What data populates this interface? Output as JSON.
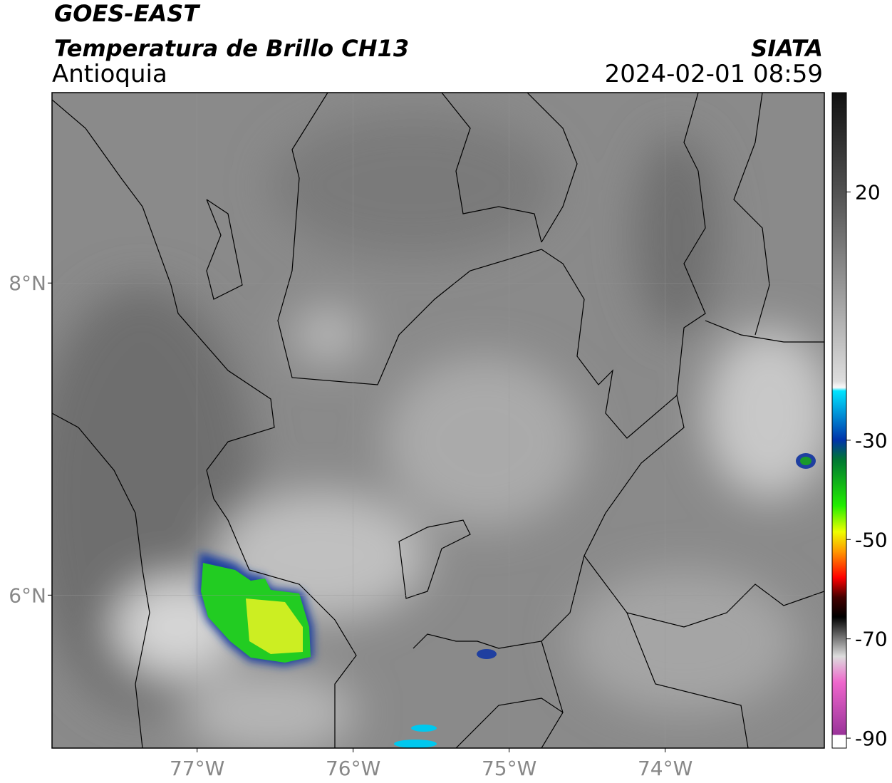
{
  "header": {
    "title": "GOES-EAST",
    "subtitle": "Temperatura de Brillo CH13",
    "region": "Antioquia",
    "source": "SIATA",
    "datetime": "2024-02-01 08:59"
  },
  "map": {
    "xlim": [
      -77.93,
      -72.98
    ],
    "ylim": [
      5.02,
      9.22
    ],
    "xticks": [
      {
        "value": -77,
        "label": "77°W"
      },
      {
        "value": -76,
        "label": "76°W"
      },
      {
        "value": -75,
        "label": "75°W"
      },
      {
        "value": -74,
        "label": "74°W"
      }
    ],
    "yticks": [
      {
        "value": 8,
        "label": "8°N"
      },
      {
        "value": 6,
        "label": "6°N"
      }
    ],
    "grid": true
  },
  "colorbar": {
    "lim": [
      -92,
      40
    ],
    "ticks": [
      20,
      -30,
      -50,
      -70,
      -90
    ]
  }
}
